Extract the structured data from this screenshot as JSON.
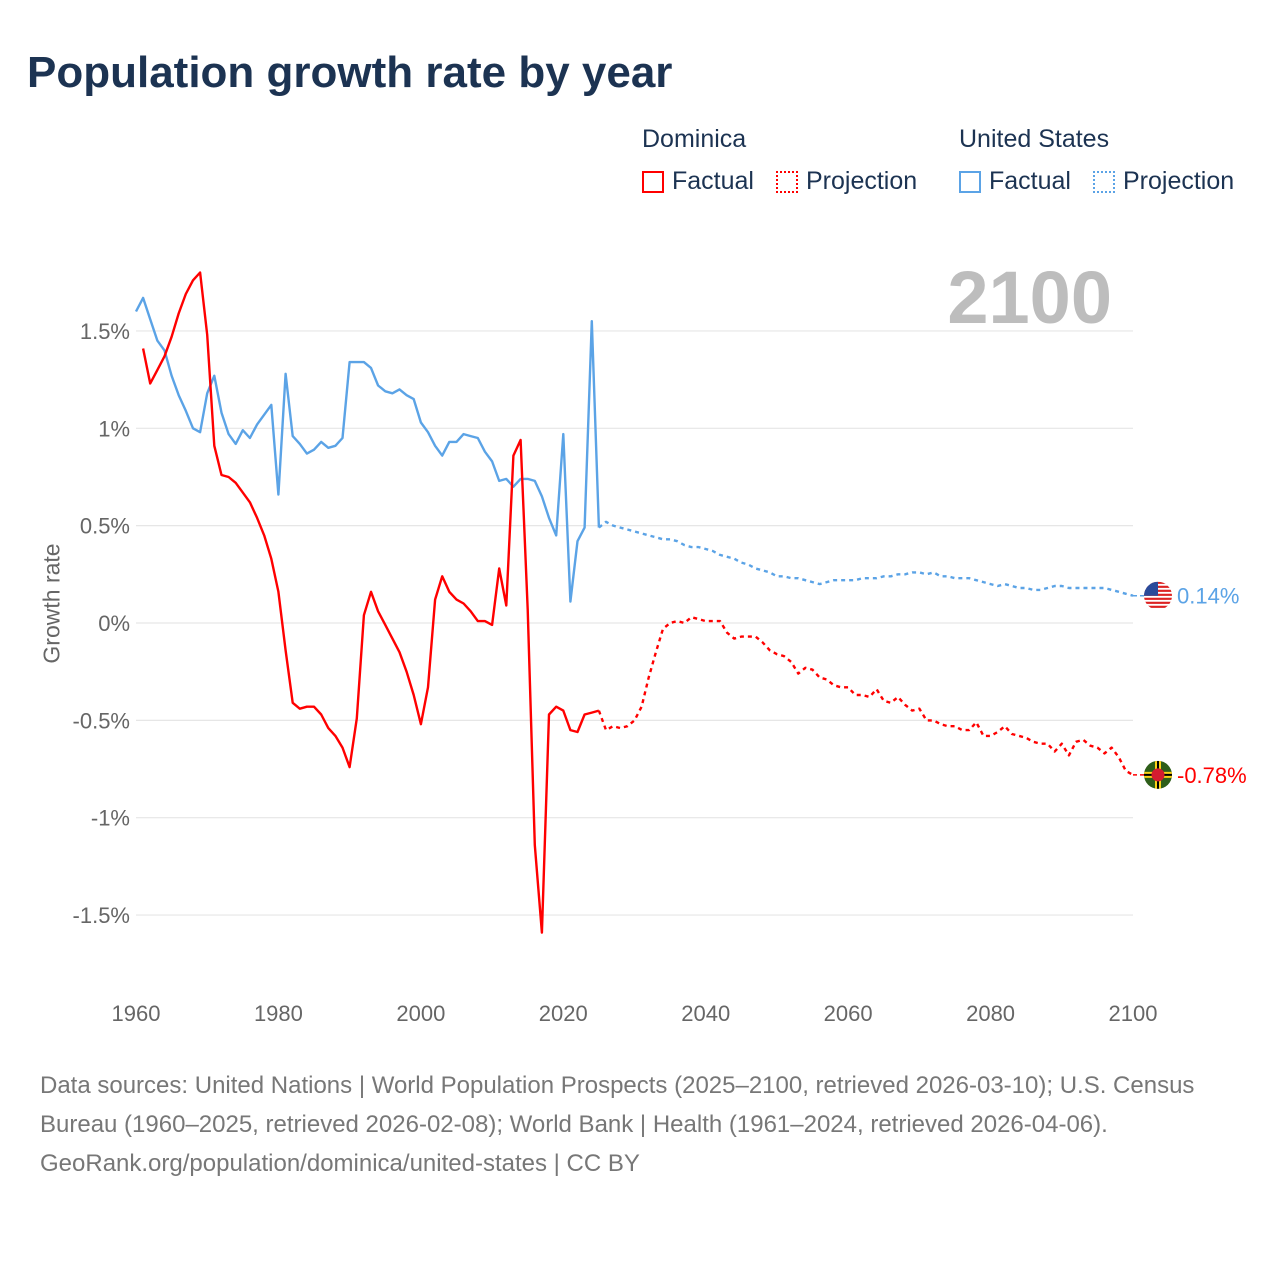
{
  "title": "Population growth rate by year",
  "current_year": "2100",
  "legend": {
    "groups": [
      {
        "name": "Dominica",
        "color": "#ff0000",
        "factual": "Factual",
        "projection": "Projection"
      },
      {
        "name": "United States",
        "color": "#5ba3e6",
        "factual": "Factual",
        "projection": "Projection"
      }
    ]
  },
  "end_labels": {
    "us": "0.14%",
    "dominica": "-0.78%"
  },
  "footer": {
    "sources": "Data sources: United Nations | World Population Prospects (2025–2100, retrieved 2026-03-10); U.S. Census Bureau (1960–2025, retrieved 2026-02-08); World Bank | Health (1961–2024, retrieved 2026-04-06).",
    "credit": "GeoRank.org/population/dominica/united-states | CC BY"
  },
  "chart_data": {
    "type": "line",
    "title": "Population growth rate by year",
    "xlabel": "",
    "ylabel": "Growth rate",
    "xlim": [
      1960,
      2100
    ],
    "ylim": [
      -1.75,
      1.85
    ],
    "x_ticks": [
      "1960",
      "1980",
      "2000",
      "2020",
      "2040",
      "2060",
      "2080",
      "2100"
    ],
    "y_ticks": [
      {
        "v": 1.5,
        "label": "1.5%"
      },
      {
        "v": 1,
        "label": "1%"
      },
      {
        "v": 0.5,
        "label": "0.5%"
      },
      {
        "v": 0,
        "label": "0%"
      },
      {
        "v": -0.5,
        "label": "-0.5%"
      },
      {
        "v": -1,
        "label": "-1%"
      },
      {
        "v": -1.5,
        "label": "-1.5%"
      }
    ],
    "grid": true,
    "legend_position": "top-right",
    "series": [
      {
        "name": "United States",
        "kind": "factual",
        "color": "#5ba3e6",
        "start": 1960,
        "values": [
          1.6,
          1.67,
          1.56,
          1.45,
          1.4,
          1.27,
          1.17,
          1.09,
          1.0,
          0.98,
          1.18,
          1.27,
          1.08,
          0.97,
          0.92,
          0.99,
          0.95,
          1.02,
          1.07,
          1.12,
          0.66,
          1.28,
          0.96,
          0.92,
          0.87,
          0.89,
          0.93,
          0.9,
          0.91,
          0.95,
          1.34,
          1.34,
          1.34,
          1.31,
          1.22,
          1.19,
          1.18,
          1.2,
          1.17,
          1.15,
          1.03,
          0.98,
          0.91,
          0.86,
          0.93,
          0.93,
          0.97,
          0.96,
          0.95,
          0.88,
          0.83,
          0.73,
          0.74,
          0.7,
          0.74,
          0.74,
          0.73,
          0.65,
          0.54,
          0.45,
          0.97,
          0.11,
          0.42,
          0.49,
          1.55,
          0.49
        ]
      },
      {
        "name": "United States",
        "kind": "projection",
        "color": "#5ba3e6",
        "start": 2025,
        "values": [
          0.49,
          0.52,
          0.5,
          0.49,
          0.48,
          0.47,
          0.46,
          0.45,
          0.44,
          0.43,
          0.43,
          0.42,
          0.4,
          0.39,
          0.39,
          0.38,
          0.37,
          0.35,
          0.34,
          0.33,
          0.31,
          0.3,
          0.28,
          0.27,
          0.26,
          0.24,
          0.24,
          0.23,
          0.23,
          0.22,
          0.21,
          0.2,
          0.21,
          0.22,
          0.22,
          0.22,
          0.22,
          0.23,
          0.23,
          0.23,
          0.24,
          0.24,
          0.25,
          0.25,
          0.26,
          0.26,
          0.25,
          0.26,
          0.24,
          0.24,
          0.23,
          0.23,
          0.23,
          0.22,
          0.21,
          0.2,
          0.19,
          0.2,
          0.19,
          0.18,
          0.18,
          0.17,
          0.17,
          0.18,
          0.19,
          0.19,
          0.18,
          0.18,
          0.18,
          0.18,
          0.18,
          0.18,
          0.17,
          0.16,
          0.15,
          0.14
        ]
      },
      {
        "name": "Dominica",
        "kind": "factual",
        "color": "#ff0000",
        "start": 1961,
        "values": [
          1.41,
          1.23,
          1.3,
          1.37,
          1.47,
          1.59,
          1.69,
          1.76,
          1.8,
          1.48,
          0.91,
          0.76,
          0.75,
          0.72,
          0.67,
          0.62,
          0.54,
          0.45,
          0.33,
          0.16,
          -0.14,
          -0.41,
          -0.44,
          -0.43,
          -0.43,
          -0.47,
          -0.54,
          -0.58,
          -0.64,
          -0.74,
          -0.49,
          0.04,
          0.16,
          0.06,
          -0.01,
          -0.08,
          -0.15,
          -0.25,
          -0.37,
          -0.52,
          -0.33,
          0.12,
          0.24,
          0.16,
          0.12,
          0.1,
          0.06,
          0.01,
          0.01,
          -0.01,
          0.28,
          0.09,
          0.86,
          0.94,
          0.07,
          -1.14,
          -1.59,
          -0.47,
          -0.43,
          -0.45,
          -0.55,
          -0.56,
          -0.47,
          -0.46,
          -0.45
        ]
      },
      {
        "name": "Dominica",
        "kind": "projection",
        "color": "#ff0000",
        "start": 2025,
        "values": [
          -0.45,
          -0.55,
          -0.53,
          -0.54,
          -0.53,
          -0.5,
          -0.43,
          -0.28,
          -0.15,
          -0.03,
          0.0,
          0.01,
          0.0,
          0.03,
          0.02,
          0.01,
          0.01,
          0.01,
          -0.05,
          -0.08,
          -0.07,
          -0.07,
          -0.07,
          -0.1,
          -0.14,
          -0.16,
          -0.17,
          -0.2,
          -0.26,
          -0.23,
          -0.24,
          -0.28,
          -0.29,
          -0.32,
          -0.33,
          -0.33,
          -0.37,
          -0.37,
          -0.38,
          -0.34,
          -0.4,
          -0.41,
          -0.38,
          -0.42,
          -0.45,
          -0.44,
          -0.5,
          -0.5,
          -0.52,
          -0.53,
          -0.53,
          -0.55,
          -0.55,
          -0.51,
          -0.58,
          -0.58,
          -0.56,
          -0.53,
          -0.57,
          -0.58,
          -0.59,
          -0.61,
          -0.62,
          -0.62,
          -0.66,
          -0.62,
          -0.68,
          -0.61,
          -0.6,
          -0.63,
          -0.64,
          -0.67,
          -0.64,
          -0.69,
          -0.76,
          -0.78
        ]
      }
    ]
  }
}
